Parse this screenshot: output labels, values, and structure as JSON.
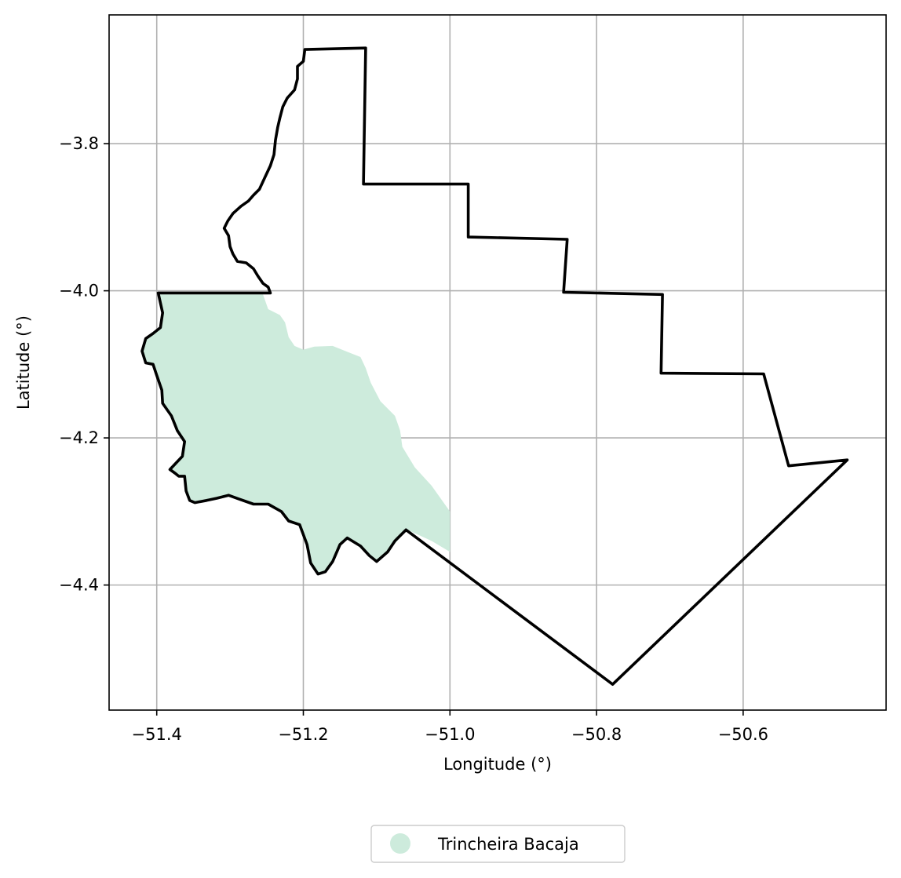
{
  "chart_data": {
    "type": "map",
    "xlabel": "Longitude (°)",
    "ylabel": "Latitude (°)",
    "xlim": [
      -51.465,
      -50.405
    ],
    "ylim": [
      -4.57,
      -3.625
    ],
    "grid": true,
    "x_ticks": [
      -51.4,
      -51.2,
      -51.0,
      -50.8,
      -50.6
    ],
    "x_tick_labels": [
      "−51.4",
      "−51.2",
      "−51.0",
      "−50.8",
      "−50.6"
    ],
    "y_ticks": [
      -3.8,
      -4.0,
      -4.2,
      -4.4
    ],
    "y_tick_labels": [
      "−3.8",
      "−4.0",
      "−4.2",
      "−4.4"
    ],
    "legend": {
      "placement": "bottom-center-outside",
      "entries": [
        {
          "label": "Trincheira Bacaja",
          "color": "#cdebdc"
        }
      ]
    },
    "series": [
      {
        "name": "Trincheira Bacaja",
        "kind": "filled-polygon",
        "color": "#cdebdc",
        "coords": [
          [
            -51.398,
            -4.005
          ],
          [
            -51.255,
            -4.005
          ],
          [
            -51.248,
            -4.025
          ],
          [
            -51.232,
            -4.033
          ],
          [
            -51.225,
            -4.043
          ],
          [
            -51.22,
            -4.063
          ],
          [
            -51.212,
            -4.075
          ],
          [
            -51.2,
            -4.08
          ],
          [
            -51.185,
            -4.076
          ],
          [
            -51.16,
            -4.075
          ],
          [
            -51.14,
            -4.083
          ],
          [
            -51.122,
            -4.09
          ],
          [
            -51.115,
            -4.105
          ],
          [
            -51.108,
            -4.125
          ],
          [
            -51.095,
            -4.15
          ],
          [
            -51.075,
            -4.17
          ],
          [
            -51.068,
            -4.19
          ],
          [
            -51.065,
            -4.212
          ],
          [
            -51.048,
            -4.24
          ],
          [
            -51.025,
            -4.265
          ],
          [
            -51.0,
            -4.3
          ],
          [
            -51.0,
            -4.355
          ],
          [
            -51.025,
            -4.34
          ],
          [
            -51.058,
            -4.325
          ],
          [
            -51.07,
            -4.338
          ],
          [
            -51.085,
            -4.355
          ],
          [
            -51.1,
            -4.368
          ],
          [
            -51.11,
            -4.36
          ],
          [
            -51.122,
            -4.347
          ],
          [
            -51.14,
            -4.336
          ],
          [
            -51.15,
            -4.345
          ],
          [
            -51.16,
            -4.368
          ],
          [
            -51.17,
            -4.382
          ],
          [
            -51.18,
            -4.385
          ],
          [
            -51.19,
            -4.37
          ],
          [
            -51.195,
            -4.345
          ],
          [
            -51.205,
            -4.318
          ],
          [
            -51.22,
            -4.313
          ],
          [
            -51.23,
            -4.3
          ],
          [
            -51.248,
            -4.29
          ],
          [
            -51.268,
            -4.29
          ],
          [
            -51.288,
            -4.283
          ],
          [
            -51.302,
            -4.278
          ],
          [
            -51.318,
            -4.282
          ],
          [
            -51.332,
            -4.285
          ],
          [
            -51.348,
            -4.288
          ],
          [
            -51.355,
            -4.285
          ],
          [
            -51.36,
            -4.272
          ],
          [
            -51.362,
            -4.252
          ],
          [
            -51.37,
            -4.252
          ],
          [
            -51.375,
            -4.248
          ],
          [
            -51.382,
            -4.243
          ],
          [
            -51.365,
            -4.225
          ],
          [
            -51.362,
            -4.205
          ],
          [
            -51.372,
            -4.19
          ],
          [
            -51.38,
            -4.17
          ],
          [
            -51.392,
            -4.153
          ],
          [
            -51.393,
            -4.135
          ],
          [
            -51.4,
            -4.115
          ],
          [
            -51.405,
            -4.1
          ],
          [
            -51.415,
            -4.098
          ],
          [
            -51.42,
            -4.082
          ],
          [
            -51.415,
            -4.065
          ],
          [
            -51.405,
            -4.058
          ],
          [
            -51.395,
            -4.05
          ],
          [
            -51.392,
            -4.03
          ],
          [
            -51.398,
            -4.005
          ]
        ]
      },
      {
        "name": "",
        "kind": "outline",
        "color": "#000000",
        "coords": [
          [
            -51.398,
            -4.003
          ],
          [
            -51.245,
            -4.003
          ],
          [
            -51.248,
            -3.995
          ],
          [
            -51.255,
            -3.99
          ],
          [
            -51.262,
            -3.98
          ],
          [
            -51.268,
            -3.97
          ],
          [
            -51.278,
            -3.962
          ],
          [
            -51.29,
            -3.96
          ],
          [
            -51.296,
            -3.95
          ],
          [
            -51.3,
            -3.94
          ],
          [
            -51.302,
            -3.925
          ],
          [
            -51.308,
            -3.915
          ],
          [
            -51.303,
            -3.905
          ],
          [
            -51.296,
            -3.895
          ],
          [
            -51.285,
            -3.885
          ],
          [
            -51.275,
            -3.878
          ],
          [
            -51.268,
            -3.87
          ],
          [
            -51.26,
            -3.862
          ],
          [
            -51.252,
            -3.845
          ],
          [
            -51.245,
            -3.83
          ],
          [
            -51.24,
            -3.815
          ],
          [
            -51.238,
            -3.795
          ],
          [
            -51.235,
            -3.778
          ],
          [
            -51.232,
            -3.765
          ],
          [
            -51.228,
            -3.75
          ],
          [
            -51.222,
            -3.738
          ],
          [
            -51.212,
            -3.727
          ],
          [
            -51.208,
            -3.712
          ],
          [
            -51.208,
            -3.695
          ],
          [
            -51.2,
            -3.688
          ],
          [
            -51.198,
            -3.672
          ],
          [
            -51.115,
            -3.67
          ],
          [
            -51.118,
            -3.855
          ],
          [
            -50.975,
            -3.855
          ],
          [
            -50.975,
            -3.927
          ],
          [
            -50.84,
            -3.93
          ],
          [
            -50.845,
            -4.002
          ],
          [
            -50.71,
            -4.005
          ],
          [
            -50.712,
            -4.112
          ],
          [
            -50.572,
            -4.113
          ],
          [
            -50.538,
            -4.238
          ],
          [
            -50.458,
            -4.23
          ],
          [
            -50.778,
            -4.535
          ],
          [
            -51.06,
            -4.325
          ],
          [
            -51.075,
            -4.34
          ],
          [
            -51.085,
            -4.355
          ],
          [
            -51.1,
            -4.368
          ],
          [
            -51.11,
            -4.36
          ],
          [
            -51.122,
            -4.347
          ],
          [
            -51.14,
            -4.336
          ],
          [
            -51.15,
            -4.345
          ],
          [
            -51.16,
            -4.368
          ],
          [
            -51.17,
            -4.382
          ],
          [
            -51.18,
            -4.385
          ],
          [
            -51.19,
            -4.37
          ],
          [
            -51.195,
            -4.345
          ],
          [
            -51.205,
            -4.318
          ],
          [
            -51.22,
            -4.313
          ],
          [
            -51.23,
            -4.3
          ],
          [
            -51.248,
            -4.29
          ],
          [
            -51.268,
            -4.29
          ],
          [
            -51.288,
            -4.283
          ],
          [
            -51.302,
            -4.278
          ],
          [
            -51.318,
            -4.282
          ],
          [
            -51.332,
            -4.285
          ],
          [
            -51.348,
            -4.288
          ],
          [
            -51.355,
            -4.285
          ],
          [
            -51.36,
            -4.272
          ],
          [
            -51.362,
            -4.252
          ],
          [
            -51.37,
            -4.252
          ],
          [
            -51.375,
            -4.248
          ],
          [
            -51.382,
            -4.243
          ],
          [
            -51.365,
            -4.225
          ],
          [
            -51.362,
            -4.205
          ],
          [
            -51.372,
            -4.19
          ],
          [
            -51.38,
            -4.17
          ],
          [
            -51.392,
            -4.153
          ],
          [
            -51.393,
            -4.135
          ],
          [
            -51.4,
            -4.115
          ],
          [
            -51.405,
            -4.1
          ],
          [
            -51.415,
            -4.098
          ],
          [
            -51.42,
            -4.082
          ],
          [
            -51.415,
            -4.065
          ],
          [
            -51.405,
            -4.058
          ],
          [
            -51.395,
            -4.05
          ],
          [
            -51.392,
            -4.03
          ],
          [
            -51.398,
            -4.003
          ]
        ]
      }
    ]
  }
}
